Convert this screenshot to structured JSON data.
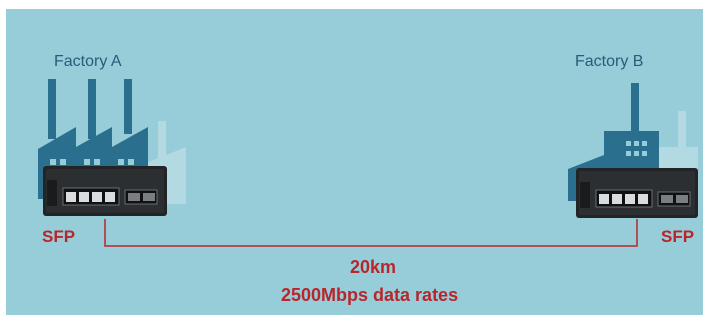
{
  "factory_a": {
    "label": "Factory A"
  },
  "factory_b": {
    "label": "Factory B"
  },
  "endpoint_left": {
    "label": "SFP"
  },
  "endpoint_right": {
    "label": "SFP"
  },
  "link": {
    "distance": "20km",
    "rate": "2500Mbps data rates"
  },
  "colors": {
    "background": "#96cdd8",
    "factory": "#2b6f8e",
    "factory_ghost": "#b3dae2",
    "link_line": "#b8262b",
    "text_red": "#b8262b",
    "text_blue": "#2a5b7c",
    "switch_body": "#222426"
  },
  "icons": {
    "factory_a": "factory-icon",
    "factory_b": "factory-icon",
    "switch": "network-switch-icon"
  }
}
